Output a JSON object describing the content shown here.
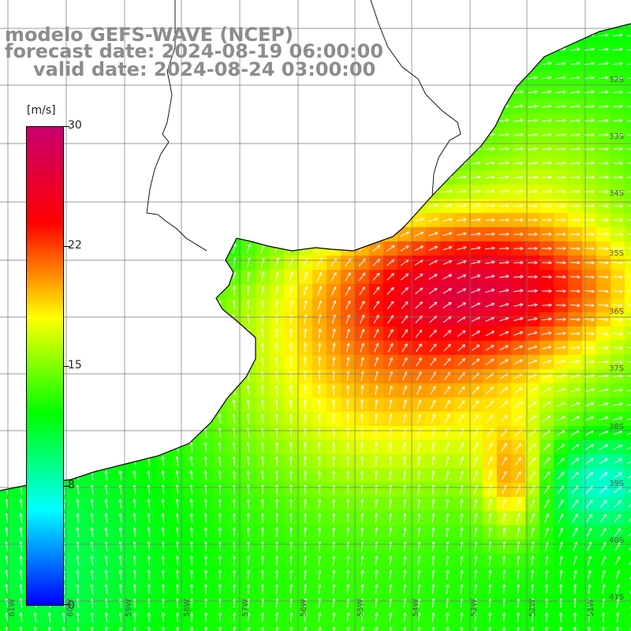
{
  "header": {
    "model": "modelo GEFS-WAVE (NCEP)",
    "forecast_date": "forecast date: 2024-08-19 06:00:00",
    "valid_date": "valid date: 2024-08-24 03:00:00"
  },
  "colorbar": {
    "unit": "[m/s]",
    "min": 0,
    "max": 30,
    "ticks": [
      "30",
      "22",
      "15",
      "8",
      "0"
    ],
    "stops": [
      "#0000ff",
      "#00ffff",
      "#00ff00",
      "#ffff00",
      "#ff0000",
      "#c8006e"
    ]
  },
  "grid": {
    "lon_labels": [
      "61W",
      "60W",
      "59W",
      "58W",
      "57W",
      "56W",
      "55W",
      "54W",
      "53W",
      "52W",
      "51W"
    ],
    "lat_labels": [
      "32S",
      "33S",
      "34S",
      "35S",
      "36S",
      "37S",
      "38S",
      "39S",
      "40S",
      "41S"
    ]
  },
  "field": {
    "variable": "wind speed",
    "colors": {
      "land": "#ffffff",
      "gridline": "#777777",
      "coast": "#000000",
      "arrow": "#ffffff"
    }
  }
}
